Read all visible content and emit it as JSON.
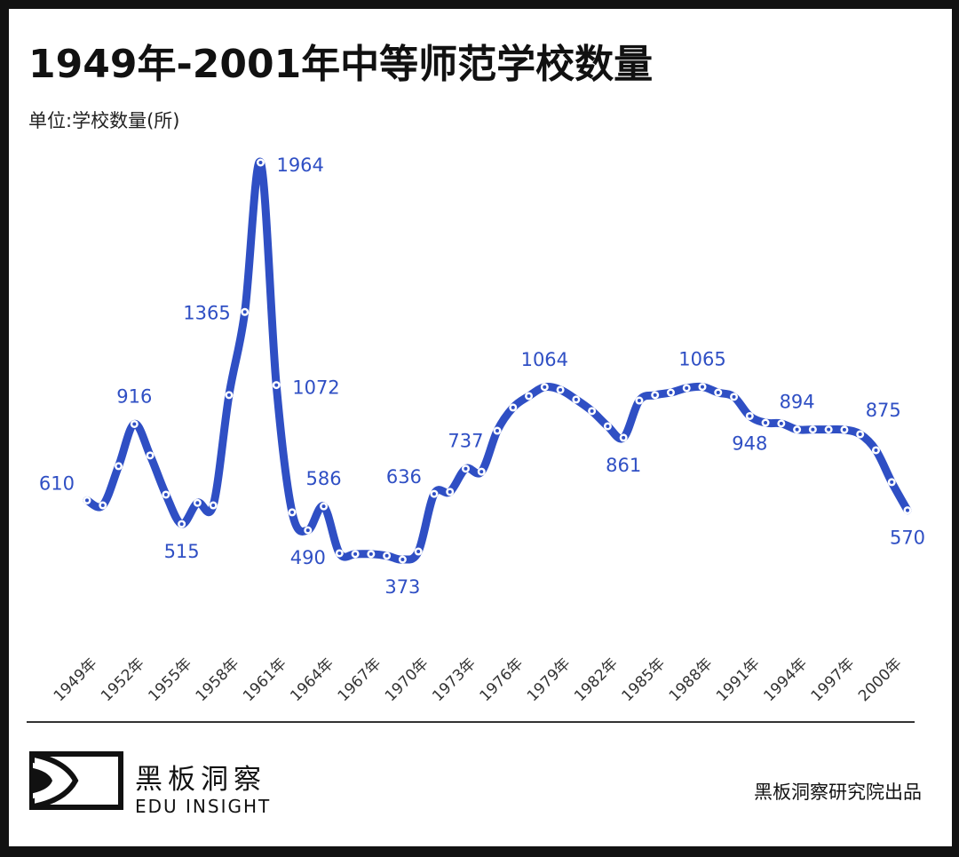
{
  "header": {
    "title": "1949年-2001年中等师范学校数量",
    "unit": "单位:学校数量(所)"
  },
  "footer": {
    "brand_cn": "黑板洞察",
    "brand_en": "EDU INSIGHT",
    "credit": "黑板洞察研究院出品"
  },
  "colors": {
    "line": "#2f4fc4",
    "label": "#2f4fc4",
    "text": "#111111",
    "frame": "#121212"
  },
  "chart_data": {
    "type": "line",
    "title": "1949年-2001年中等师范学校数量",
    "ylabel": "单位:学校数量(所)",
    "xlabel": "",
    "grid": false,
    "legend": "none",
    "x": [
      1949,
      1950,
      1951,
      1952,
      1953,
      1954,
      1955,
      1956,
      1957,
      1958,
      1959,
      1960,
      1961,
      1962,
      1963,
      1964,
      1965,
      1966,
      1967,
      1968,
      1969,
      1970,
      1971,
      1972,
      1973,
      1974,
      1975,
      1976,
      1977,
      1978,
      1979,
      1980,
      1981,
      1982,
      1983,
      1984,
      1985,
      1986,
      1987,
      1988,
      1989,
      1990,
      1991,
      1992,
      1993,
      1994,
      1995,
      1996,
      1997,
      1998,
      1999,
      2000,
      2001
    ],
    "values": [
      610,
      590,
      747,
      916,
      790,
      633,
      515,
      600,
      590,
      1032,
      1365,
      1964,
      1072,
      562,
      490,
      586,
      398,
      395,
      395,
      388,
      373,
      405,
      636,
      644,
      737,
      725,
      889,
      982,
      1028,
      1064,
      1053,
      1014,
      968,
      907,
      861,
      1010,
      1032,
      1042,
      1060,
      1065,
      1042,
      1025,
      948,
      921,
      918,
      894,
      894,
      894,
      893,
      875,
      811,
      683,
      570
    ],
    "xticks": [
      "1949年",
      "1952年",
      "1955年",
      "1958年",
      "1961年",
      "1964年",
      "1967年",
      "1970年",
      "1973年",
      "1976年",
      "1979年",
      "1982年",
      "1985年",
      "1988年",
      "1991年",
      "1994年",
      "1997年",
      "2000年"
    ],
    "xtick_years": [
      1949,
      1952,
      1955,
      1958,
      1961,
      1964,
      1967,
      1970,
      1973,
      1976,
      1979,
      1982,
      1985,
      1988,
      1991,
      1994,
      1997,
      2000
    ],
    "ylim": [
      373,
      1964
    ],
    "data_labels": [
      {
        "year": 1949,
        "text": "610",
        "position": "above-left"
      },
      {
        "year": 1952,
        "text": "916",
        "position": "above"
      },
      {
        "year": 1955,
        "text": "515",
        "position": "below"
      },
      {
        "year": 1959,
        "text": "1365",
        "position": "left"
      },
      {
        "year": 1960,
        "text": "1964",
        "position": "right"
      },
      {
        "year": 1961,
        "text": "1072",
        "position": "right"
      },
      {
        "year": 1963,
        "text": "490",
        "position": "below"
      },
      {
        "year": 1964,
        "text": "586",
        "position": "above"
      },
      {
        "year": 1969,
        "text": "373",
        "position": "below"
      },
      {
        "year": 1971,
        "text": "636",
        "position": "above-left"
      },
      {
        "year": 1973,
        "text": "737",
        "position": "above"
      },
      {
        "year": 1978,
        "text": "1064",
        "position": "above"
      },
      {
        "year": 1983,
        "text": "861",
        "position": "below"
      },
      {
        "year": 1988,
        "text": "1065",
        "position": "above"
      },
      {
        "year": 1991,
        "text": "948",
        "position": "below"
      },
      {
        "year": 1994,
        "text": "894",
        "position": "above"
      },
      {
        "year": 1998,
        "text": "875",
        "position": "above-right"
      },
      {
        "year": 2001,
        "text": "570",
        "position": "below"
      }
    ]
  }
}
